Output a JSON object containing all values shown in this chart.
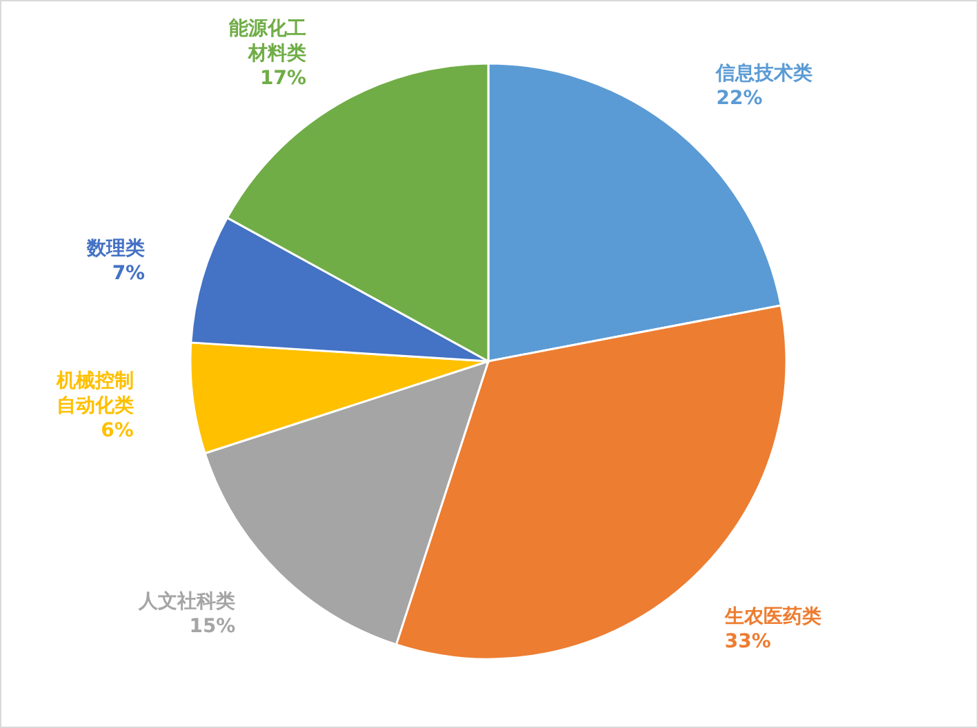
{
  "chart_data": {
    "type": "pie",
    "categories": [
      "信息技术类",
      "生农医药类",
      "人文社科类",
      "机械控制自动化类",
      "数理类",
      "能源化工材料类"
    ],
    "values": [
      22,
      33,
      15,
      6,
      7,
      17
    ],
    "colors": [
      "#5b9bd5",
      "#ed7d31",
      "#a5a5a5",
      "#ffc000",
      "#4472c4",
      "#70ad47"
    ],
    "value_labels": [
      "22%",
      "33%",
      "15%",
      "6%",
      "7%",
      "17%"
    ]
  }
}
